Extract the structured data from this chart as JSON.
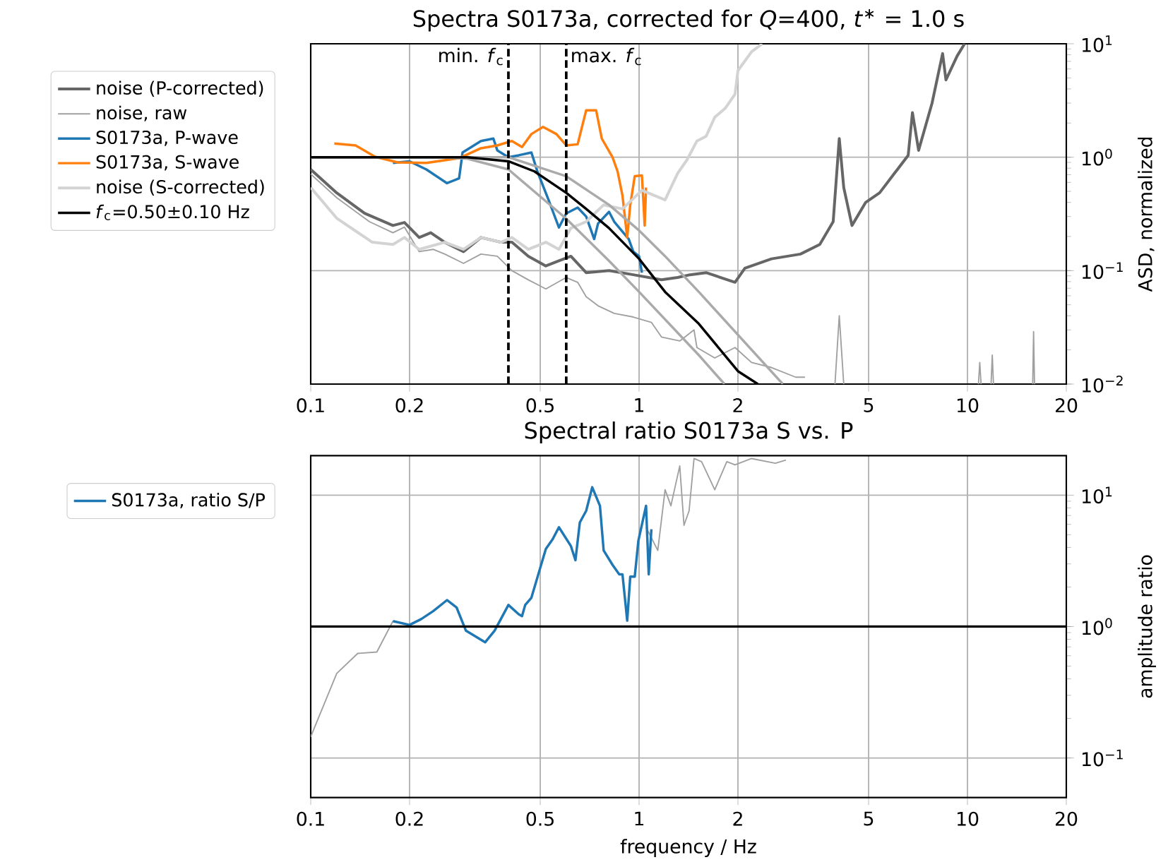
{
  "chart_data": [
    {
      "type": "line",
      "title": "Spectra S0173a, corrected for *Q*=400, *t*$^{∗}$ = 1.0 s",
      "ylabel": "ASD, normalized",
      "log": "xy",
      "grid": true,
      "legend": "left",
      "xlim": [
        0.1,
        20
      ],
      "ylim": [
        0.01,
        10
      ],
      "xticks": [
        0.1,
        0.2,
        0.5,
        1,
        2,
        5,
        10,
        20
      ],
      "yticks": [
        {
          "value": 0.01,
          "label": "10$^{−2}$"
        },
        {
          "value": 0.1,
          "label": "10$^{−1}$"
        },
        {
          "value": 1,
          "label": "10$^{0}$"
        },
        {
          "value": 10,
          "label": "10$^{1}$"
        }
      ],
      "ref_lines": [
        {
          "axis": "x",
          "value": 0.4,
          "label": "min. *f*$_{c}$",
          "color": "#000000",
          "line_style": "dashed"
        },
        {
          "axis": "x",
          "value": 0.6,
          "label": "max. *f*$_{c}$",
          "color": "#000000",
          "line_style": "dashed"
        }
      ],
      "series": [
        {
          "name": "noise (P-corrected)",
          "color": "#666666",
          "x": [
            0.1,
            0.12,
            0.146,
            0.178,
            0.193,
            0.214,
            0.232,
            0.256,
            0.292,
            0.33,
            0.38,
            0.41,
            0.46,
            0.52,
            0.57,
            0.62,
            0.69,
            0.81,
            0.96,
            1.17,
            1.31,
            1.43,
            1.6,
            1.96,
            2.1,
            2.53,
            3.1,
            3.55,
            3.9,
            4.07,
            4.2,
            4.45,
            4.9,
            5.4,
            5.97,
            6.6,
            6.8,
            7.1,
            7.8,
            8.4,
            8.6,
            9.3,
            9.8
          ],
          "values": [
            0.78,
            0.485,
            0.32,
            0.25,
            0.266,
            0.196,
            0.216,
            0.178,
            0.147,
            0.196,
            0.178,
            0.178,
            0.134,
            0.11,
            0.122,
            0.134,
            0.096,
            0.1,
            0.092,
            0.083,
            0.087,
            0.092,
            0.096,
            0.079,
            0.105,
            0.127,
            0.14,
            0.17,
            0.27,
            1.46,
            0.54,
            0.25,
            0.4,
            0.485,
            0.71,
            1.04,
            2.47,
            1.15,
            2.99,
            8.2,
            4.8,
            7.8,
            10
          ]
        },
        {
          "name": "noise, raw",
          "color": "#a0a0a0",
          "x": [
            0.1,
            0.12,
            0.151,
            0.178,
            0.193,
            0.214,
            0.236,
            0.256,
            0.292,
            0.33,
            0.37,
            0.41,
            0.46,
            0.52,
            0.6,
            0.65,
            0.69,
            0.75,
            0.84,
            0.96,
            1.09,
            1.17,
            1.33,
            1.47,
            1.5,
            1.7,
            1.96,
            2.2,
            2.53,
            3.0,
            3.2,
            3.4,
            3.95,
            4.07,
            4.2,
            4.3,
            10.8,
            10.9,
            11.0,
            11.5,
            11.8,
            11.9,
            12.0,
            13,
            15.8,
            15.9,
            16.0
          ],
          "values": [
            0.71,
            0.44,
            0.27,
            0.216,
            0.242,
            0.147,
            0.154,
            0.14,
            0.116,
            0.14,
            0.134,
            0.1,
            0.083,
            0.069,
            0.087,
            0.079,
            0.059,
            0.049,
            0.042,
            0.039,
            0.035,
            0.026,
            0.024,
            0.03,
            0.021,
            0.017,
            0.021,
            0.0155,
            0.014,
            0.0115,
            0.0115,
            null,
            0.01,
            0.04,
            0.01,
            null,
            0.01,
            0.0155,
            0.01,
            null,
            0.01,
            0.018,
            0.01,
            null,
            0.01,
            0.029,
            0.01
          ]
        },
        {
          "name": "S0173a, P-wave",
          "color": "#1f77b4",
          "x": [
            0.178,
            0.2,
            0.225,
            0.26,
            0.283,
            0.29,
            0.33,
            0.36,
            0.37,
            0.4,
            0.43,
            0.47,
            0.49,
            0.53,
            0.57,
            0.6,
            0.65,
            0.69,
            0.73,
            0.75,
            0.81,
            0.84,
            0.93,
            0.96,
            1.0,
            1.02
          ],
          "values": [
            0.89,
            0.92,
            0.78,
            0.59,
            0.65,
            1.1,
            1.39,
            1.46,
            1.15,
            1.0,
            1.04,
            1.1,
            0.75,
            0.42,
            0.24,
            0.32,
            0.36,
            0.3,
            0.19,
            0.26,
            0.33,
            0.27,
            0.19,
            0.147,
            0.134,
            0.096
          ]
        },
        {
          "name": "S0173a, S-wave",
          "color": "#ff7f0e",
          "x": [
            0.118,
            0.137,
            0.157,
            0.184,
            0.225,
            0.283,
            0.33,
            0.37,
            0.41,
            0.44,
            0.47,
            0.51,
            0.56,
            0.6,
            0.65,
            0.69,
            0.74,
            0.77,
            0.83,
            0.86,
            0.89,
            0.92,
            0.94,
            0.97,
            1.02,
            1.03,
            1.04,
            1.05
          ],
          "values": [
            1.32,
            1.27,
            1.01,
            0.9,
            0.89,
            0.98,
            1.2,
            1.27,
            1.39,
            1.23,
            1.6,
            1.85,
            1.6,
            1.27,
            1.3,
            2.59,
            2.59,
            1.46,
            1.0,
            0.75,
            0.46,
            0.196,
            0.38,
            0.68,
            0.69,
            0.42,
            0.25,
            0.54
          ]
        },
        {
          "name": "noise (S-corrected)",
          "color": "#d3d3d3",
          "x": [
            0.1,
            0.12,
            0.154,
            0.178,
            0.193,
            0.214,
            0.256,
            0.292,
            0.33,
            0.38,
            0.41,
            0.46,
            0.52,
            0.57,
            0.62,
            0.69,
            0.78,
            0.89,
            1.02,
            1.2,
            1.31,
            1.4,
            1.5,
            1.6,
            1.7,
            1.83,
            1.96,
            2.0,
            2.2,
            2.37
          ],
          "values": [
            0.54,
            0.29,
            0.178,
            0.17,
            0.196,
            0.154,
            0.178,
            0.154,
            0.196,
            0.178,
            0.196,
            0.154,
            0.178,
            0.154,
            0.237,
            0.27,
            0.38,
            0.35,
            0.51,
            0.42,
            0.72,
            0.95,
            1.39,
            1.53,
            2.25,
            2.7,
            3.6,
            5.8,
            8.5,
            10
          ]
        },
        {
          "color": "#aaaaaa",
          "x": [
            0.1,
            0.25,
            0.3,
            0.4,
            0.6,
            0.81,
            1.0,
            1.52,
            1.82
          ],
          "values": [
            1,
            1,
            0.97,
            0.78,
            0.287,
            0.122,
            0.065,
            0.018,
            0.01
          ]
        },
        {
          "color": "#aaaaaa",
          "x": [
            0.1,
            0.4,
            0.6,
            0.81,
            1.0,
            1.2,
            1.52,
            2.74
          ],
          "values": [
            1,
            1,
            0.68,
            0.38,
            0.226,
            0.134,
            0.065,
            0.01
          ]
        },
        {
          "name": "*f*$_{c}$=0.50±0.10 Hz",
          "color": "#000000",
          "x": [
            0.1,
            0.2,
            0.3,
            0.4,
            0.48,
            0.6,
            0.69,
            0.81,
            1.0,
            1.2,
            1.52,
            2.0,
            2.3
          ],
          "values": [
            1,
            1,
            1,
            0.92,
            0.75,
            0.485,
            0.35,
            0.237,
            0.127,
            0.065,
            0.034,
            0.013,
            0.01
          ]
        }
      ]
    },
    {
      "type": "line",
      "title": "Spectral ratio S0173a S vs. P",
      "xlabel": "frequency / Hz",
      "ylabel": "amplitude ratio",
      "log": "xy",
      "grid": true,
      "legend": "left",
      "xlim": [
        0.1,
        20
      ],
      "ylim": [
        0.05,
        20
      ],
      "xticks": [
        0.1,
        0.2,
        0.5,
        1,
        2,
        5,
        10,
        20
      ],
      "yticks": [
        {
          "value": 0.1,
          "label": "10$^{−1}$"
        },
        {
          "value": 1,
          "label": "10$^{0}$"
        },
        {
          "value": 10,
          "label": "10$^{1}$"
        }
      ],
      "ref_lines": [
        {
          "axis": "y",
          "value": 1,
          "color": "#000000",
          "line_style": "solid"
        }
      ],
      "series": [
        {
          "color": "#a0a0a0",
          "x": [
            0.1,
            0.12,
            0.139,
            0.159,
            0.178,
            0.5,
            1.05,
            1.14,
            1.2,
            1.25,
            1.33,
            1.37,
            1.42,
            1.47,
            1.55,
            1.7,
            1.85,
            1.96,
            2.2,
            2.6,
            2.8
          ],
          "values": [
            0.145,
            0.44,
            0.625,
            0.64,
            1.1,
            null,
            5.7,
            3.8,
            11,
            8.3,
            16.7,
            5.9,
            7.6,
            19,
            18,
            11,
            18,
            17,
            19,
            17.5,
            18.5
          ]
        },
        {
          "name": "S0173a, ratio S/P",
          "color": "#1f77b4",
          "x": [
            0.178,
            0.2,
            0.217,
            0.236,
            0.26,
            0.278,
            0.297,
            0.34,
            0.363,
            0.4,
            0.43,
            0.44,
            0.45,
            0.47,
            0.52,
            0.545,
            0.57,
            0.62,
            0.64,
            0.66,
            0.69,
            0.72,
            0.76,
            0.78,
            0.83,
            0.87,
            0.89,
            0.92,
            0.94,
            0.97,
            0.995,
            1.05,
            1.07,
            1.09
          ],
          "values": [
            1.1,
            1.03,
            1.14,
            1.31,
            1.59,
            1.4,
            0.93,
            0.76,
            0.93,
            1.46,
            1.24,
            1.2,
            1.46,
            1.66,
            3.9,
            4.6,
            5.7,
            4.1,
            3.2,
            6.2,
            7.6,
            11.5,
            8.3,
            3.8,
            2.95,
            2.5,
            2.5,
            1.11,
            2.4,
            2.4,
            4.5,
            8.3,
            2.5,
            5.5
          ]
        }
      ]
    }
  ]
}
